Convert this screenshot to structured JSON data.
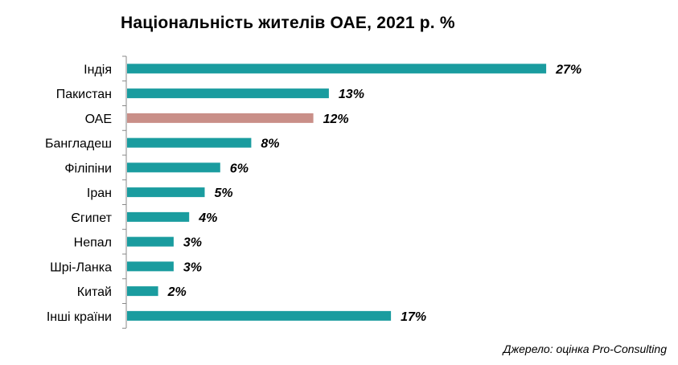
{
  "chart_data": {
    "type": "bar",
    "orientation": "horizontal",
    "title": "Національність жителів ОАЕ, 2021 р. %",
    "categories": [
      "Індія",
      "Пакистан",
      "ОАЕ",
      "Бангладеш",
      "Філіпіни",
      "Іран",
      "Єгипет",
      "Непал",
      "Шрі-Ланка",
      "Китай",
      "Інші країни"
    ],
    "values": [
      27,
      13,
      12,
      8,
      6,
      5,
      4,
      3,
      3,
      2,
      17
    ],
    "value_labels": [
      "27%",
      "13%",
      "12%",
      "8%",
      "6%",
      "5%",
      "4%",
      "3%",
      "3%",
      "2%",
      "17%"
    ],
    "colors": {
      "default": "#1a9c9f",
      "highlight": "#c98f88",
      "highlight_category": "ОАЕ"
    },
    "xlim": [
      0,
      27
    ],
    "grid": false,
    "legend": "none"
  },
  "source": "Джерело: оцінка Pro-Consulting"
}
